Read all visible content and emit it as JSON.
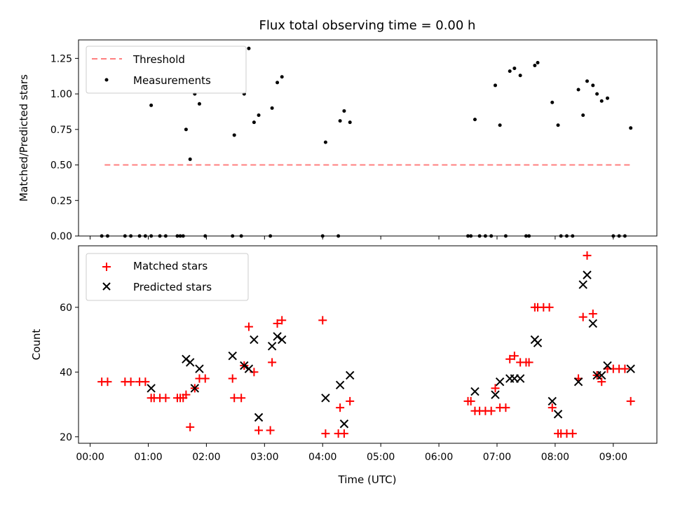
{
  "chart_data": [
    {
      "type": "scatter",
      "title": "Flux total observing time = 0.00 h",
      "xlabel": "",
      "ylabel": "Matched/Predicted stars",
      "ylim": [
        0,
        1.38
      ],
      "yticks": [
        0.0,
        0.25,
        0.5,
        0.75,
        1.0,
        1.25
      ],
      "ytick_labels": [
        "0.00",
        "0.25",
        "0.50",
        "0.75",
        "1.00",
        "1.25"
      ],
      "xlim": [
        -0.2,
        9.75
      ],
      "x_unit": "hours",
      "legend_position": "top-left",
      "threshold": {
        "name": "Threshold",
        "value": 0.5,
        "x": [
          0.25,
          9.3
        ],
        "color": "#ff7f7f",
        "style": "dashed"
      },
      "series": [
        {
          "name": "Measurements",
          "color": "#000000",
          "marker": "dot",
          "x": [
            0.2,
            0.3,
            0.6,
            0.7,
            0.85,
            0.95,
            1.05,
            1.05,
            1.2,
            1.3,
            1.5,
            1.55,
            1.6,
            1.65,
            1.72,
            1.8,
            1.88,
            1.98,
            2.45,
            2.48,
            2.6,
            2.65,
            2.73,
            2.82,
            2.9,
            3.1,
            3.13,
            3.22,
            3.3,
            4.0,
            4.05,
            4.27,
            4.3,
            4.37,
            4.47,
            6.5,
            6.55,
            6.62,
            6.7,
            6.8,
            6.9,
            6.97,
            7.05,
            7.15,
            7.22,
            7.3,
            7.4,
            7.5,
            7.55,
            7.65,
            7.7,
            7.95,
            8.05,
            8.1,
            8.2,
            8.3,
            8.4,
            8.48,
            8.55,
            8.65,
            8.72,
            8.8,
            8.9,
            9.0,
            9.1,
            9.2,
            9.3
          ],
          "y": [
            0,
            0,
            0,
            0,
            0,
            0,
            0,
            0.92,
            0,
            0,
            0,
            0,
            0,
            0.75,
            0.54,
            1.0,
            0.93,
            0,
            0,
            0.71,
            0,
            1.0,
            1.32,
            0.8,
            0.85,
            0,
            0.9,
            1.08,
            1.12,
            0,
            0.66,
            0,
            0.81,
            0.88,
            0.8,
            0,
            0,
            0.82,
            0,
            0,
            0,
            1.06,
            0.78,
            0,
            1.16,
            1.18,
            1.13,
            0,
            0,
            1.2,
            1.22,
            0.94,
            0.78,
            0,
            0,
            0,
            1.03,
            0.85,
            1.09,
            1.06,
            1.0,
            0.95,
            0.97,
            0,
            0,
            0,
            0.76
          ]
        }
      ]
    },
    {
      "type": "scatter",
      "title": "",
      "xlabel": "Time (UTC)",
      "ylabel": "Count",
      "ylim": [
        18,
        79
      ],
      "yticks": [
        20,
        40,
        60
      ],
      "ytick_labels": [
        "20",
        "40",
        "60"
      ],
      "xlim": [
        -0.2,
        9.75
      ],
      "x_unit": "hours",
      "xticks": [
        0,
        1,
        2,
        3,
        4,
        5,
        6,
        7,
        8,
        9
      ],
      "xtick_labels": [
        "00:00",
        "01:00",
        "02:00",
        "03:00",
        "04:00",
        "05:00",
        "06:00",
        "07:00",
        "08:00",
        "09:00"
      ],
      "legend_position": "top-left",
      "series": [
        {
          "name": "Matched stars",
          "color": "#ff0000",
          "marker": "plus",
          "x": [
            0.2,
            0.3,
            0.6,
            0.7,
            0.85,
            0.95,
            1.05,
            1.1,
            1.2,
            1.3,
            1.5,
            1.55,
            1.6,
            1.65,
            1.72,
            1.8,
            1.88,
            1.98,
            2.45,
            2.48,
            2.6,
            2.65,
            2.73,
            2.82,
            2.9,
            3.1,
            3.13,
            3.22,
            3.3,
            4.0,
            4.05,
            4.27,
            4.3,
            4.37,
            4.47,
            6.5,
            6.55,
            6.62,
            6.7,
            6.8,
            6.9,
            6.97,
            7.05,
            7.15,
            7.22,
            7.3,
            7.4,
            7.5,
            7.55,
            7.65,
            7.7,
            7.8,
            7.9,
            7.95,
            8.05,
            8.1,
            8.2,
            8.3,
            8.4,
            8.48,
            8.55,
            8.65,
            8.72,
            8.8,
            8.9,
            9.0,
            9.1,
            9.2,
            9.3
          ],
          "y": [
            37,
            37,
            37,
            37,
            37,
            37,
            32,
            32,
            32,
            32,
            32,
            32,
            32,
            33,
            23,
            35,
            38,
            38,
            38,
            32,
            32,
            42,
            54,
            40,
            22,
            22,
            43,
            55,
            56,
            56,
            21,
            21,
            29,
            21,
            31,
            31,
            31,
            28,
            28,
            28,
            28,
            35,
            29,
            29,
            44,
            45,
            43,
            43,
            43,
            60,
            60,
            60,
            60,
            29,
            21,
            21,
            21,
            21,
            38,
            57,
            76,
            58,
            39,
            37,
            41,
            41,
            41,
            41,
            31
          ]
        },
        {
          "name": "Predicted stars",
          "color": "#000000",
          "marker": "x",
          "x": [
            1.05,
            1.65,
            1.72,
            1.8,
            1.88,
            2.45,
            2.65,
            2.73,
            2.82,
            2.9,
            3.13,
            3.22,
            3.3,
            4.05,
            4.3,
            4.37,
            4.47,
            6.62,
            6.97,
            7.05,
            7.22,
            7.3,
            7.4,
            7.65,
            7.7,
            7.95,
            8.05,
            8.4,
            8.48,
            8.55,
            8.65,
            8.72,
            8.8,
            8.9,
            9.3
          ],
          "y": [
            35,
            44,
            43,
            35,
            41,
            45,
            42,
            41,
            50,
            26,
            48,
            51,
            50,
            32,
            36,
            24,
            39,
            34,
            33,
            37,
            38,
            38,
            38,
            50,
            49,
            31,
            27,
            37,
            67,
            70,
            55,
            39,
            39,
            42,
            41
          ]
        }
      ]
    }
  ]
}
